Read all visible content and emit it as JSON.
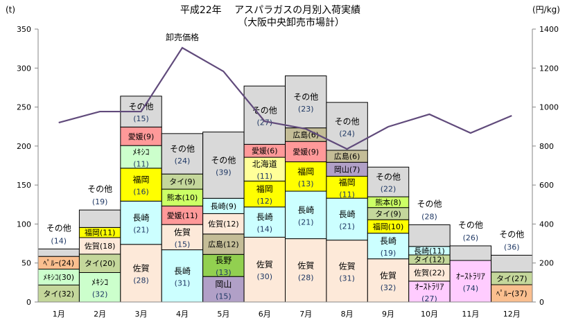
{
  "chart_data": {
    "type": "bar",
    "stacked": true,
    "title": "平成22年　 アスパラガスの月別入荷実績",
    "subtitle": "（大阪中央卸売市場計）",
    "ylabel_left": "(t)",
    "ylabel_right": "(円/kg)",
    "ylim_left": [
      0,
      350
    ],
    "ylim_right": [
      0,
      1400
    ],
    "yticks_left": [
      0,
      50,
      100,
      150,
      200,
      250,
      300,
      350
    ],
    "yticks_right": [
      0,
      200,
      400,
      600,
      800,
      1000,
      1200,
      1400
    ],
    "categories": [
      "1月",
      "2月",
      "3月",
      "4月",
      "5月",
      "6月",
      "7月",
      "8月",
      "9月",
      "10月",
      "11月",
      "12月"
    ],
    "totals_t": [
      68,
      118,
      264,
      216,
      218,
      277,
      290,
      256,
      173,
      99,
      72,
      60
    ],
    "segment_note": "numbers in parentheses are % share of month; segments listed bottom to top",
    "segments": [
      [
        [
          "タイ",
          32,
          "thai"
        ],
        [
          "ﾒｷｼｺ",
          30,
          "mexico"
        ],
        [
          "ﾍﾟﾙｰ",
          24,
          "peru"
        ],
        [
          "その他",
          14,
          "other"
        ]
      ],
      [
        [
          "ﾒｷｼｺ",
          32,
          "mexico"
        ],
        [
          "タイ",
          20,
          "thai"
        ],
        [
          "佐賀",
          18,
          "saga"
        ],
        [
          "福岡",
          11,
          "fukuoka"
        ],
        [
          "その他",
          19,
          "other"
        ]
      ],
      [
        [
          "佐賀",
          28,
          "saga"
        ],
        [
          "長崎",
          21,
          "nagasaki"
        ],
        [
          "福岡",
          16,
          "fukuoka"
        ],
        [
          "ﾒｷｼｺ",
          11,
          "mexico"
        ],
        [
          "愛媛",
          9,
          "ehime"
        ],
        [
          "その他",
          15,
          "other"
        ]
      ],
      [
        [
          "長崎",
          31,
          "nagasaki"
        ],
        [
          "佐賀",
          15,
          "saga"
        ],
        [
          "愛媛",
          11,
          "ehime"
        ],
        [
          "熊本",
          10,
          "kumamoto"
        ],
        [
          "タイ",
          9,
          "thai"
        ],
        [
          "その他",
          24,
          "other"
        ]
      ],
      [
        [
          "岡山",
          15,
          "okayama"
        ],
        [
          "長野",
          13,
          "nagano"
        ],
        [
          "広島",
          12,
          "hiroshima"
        ],
        [
          "佐賀",
          12,
          "saga"
        ],
        [
          "長崎",
          9,
          "nagasaki"
        ],
        [
          "その他",
          39,
          "other"
        ]
      ],
      [
        [
          "佐賀",
          30,
          "saga"
        ],
        [
          "長崎",
          14,
          "nagasaki"
        ],
        [
          "福岡",
          12,
          "fukuoka"
        ],
        [
          "北海道",
          11,
          "hokkaido"
        ],
        [
          "愛媛",
          6,
          "ehime"
        ],
        [
          "その他",
          27,
          "other"
        ]
      ],
      [
        [
          "佐賀",
          28,
          "saga"
        ],
        [
          "長崎",
          21,
          "nagasaki"
        ],
        [
          "福岡",
          13,
          "fukuoka"
        ],
        [
          "愛媛",
          9,
          "ehime"
        ],
        [
          "広島",
          6,
          "hiroshima"
        ],
        [
          "その他",
          23,
          "other"
        ]
      ],
      [
        [
          "佐賀",
          31,
          "saga"
        ],
        [
          "長崎",
          21,
          "nagasaki"
        ],
        [
          "福岡",
          11,
          "fukuoka"
        ],
        [
          "岡山",
          7,
          "okayama"
        ],
        [
          "広島",
          6,
          "hiroshima"
        ],
        [
          "その他",
          24,
          "other"
        ]
      ],
      [
        [
          "佐賀",
          32,
          "saga"
        ],
        [
          "長崎",
          19,
          "nagasaki"
        ],
        [
          "福岡",
          10,
          "fukuoka"
        ],
        [
          "タイ",
          9,
          "thai"
        ],
        [
          "熊本",
          8,
          "kumamoto"
        ],
        [
          "その他",
          22,
          "other"
        ]
      ],
      [
        [
          "ｵｰｽﾄﾗﾘｱ",
          27,
          "australia"
        ],
        [
          "佐賀",
          22,
          "saga"
        ],
        [
          "タイ",
          12,
          "thai"
        ],
        [
          "長崎",
          11,
          "nagasaki"
        ],
        [
          "その他",
          28,
          "other"
        ]
      ],
      [
        [
          "ｵｰｽﾄﾗﾘｱ",
          74,
          "australia"
        ],
        [
          "その他",
          26,
          "other"
        ]
      ],
      [
        [
          "ﾍﾟﾙｰ",
          37,
          "peru"
        ],
        [
          "タイ",
          27,
          "thai"
        ],
        [
          "その他",
          36,
          "other"
        ]
      ]
    ],
    "line_series": {
      "name": "卸売価格",
      "axis": "right",
      "values": [
        920,
        977,
        977,
        1304,
        1183,
        927,
        888,
        785,
        899,
        963,
        867,
        956
      ],
      "color": "#604a7b"
    },
    "colors": {
      "thai": "#c4d79b",
      "mexico": "#ccffcc",
      "peru": "#fabf8f",
      "other": "#d9d9d9",
      "saga": "#fde9d9",
      "fukuoka": "#ffff00",
      "nagasaki": "#ccffff",
      "ehime": "#ff9999",
      "kumamoto": "#ccff66",
      "hiroshima": "#c4bd97",
      "nagano": "#92d050",
      "okayama": "#b1a0c7",
      "hokkaido": "#ffff99",
      "australia": "#ffccff"
    },
    "grid": false,
    "legend": "none"
  }
}
